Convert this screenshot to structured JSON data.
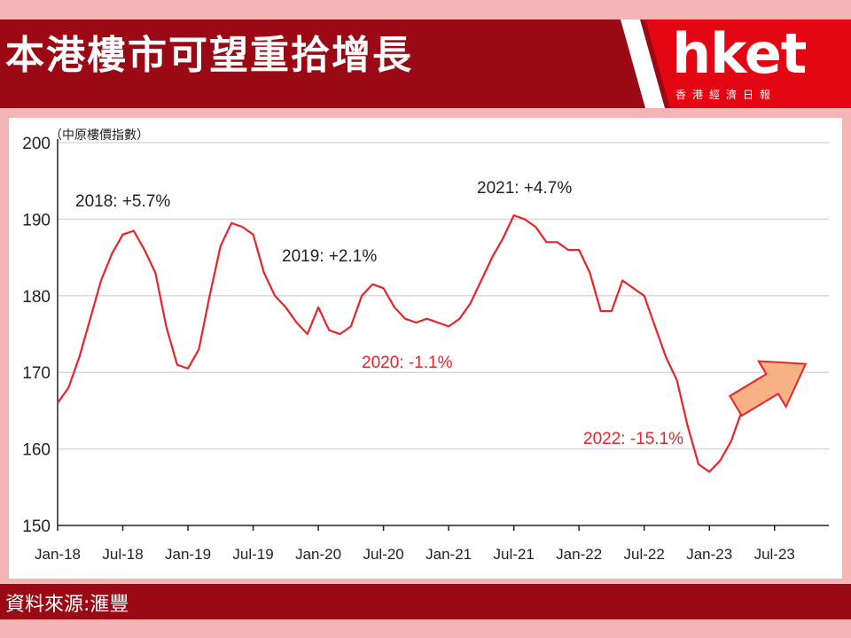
{
  "header": {
    "title": "本港樓市可望重拾增長"
  },
  "logo": {
    "brand": "hket",
    "subtitle": "香港經濟日報"
  },
  "footer": {
    "source": "資料來源:滙豐"
  },
  "colors": {
    "header_bg": "#9b0a14",
    "page_bg": "#f5b5b5",
    "line": "#e8242b",
    "arrow_fill": "#f7b184",
    "arrow_stroke": "#e8242b"
  },
  "chart_data": {
    "type": "line",
    "ylabel": "（中原樓價指數）",
    "ylim": [
      150,
      200
    ],
    "yticks": [
      150,
      160,
      170,
      180,
      190,
      200
    ],
    "xlim": [
      "2018-01",
      "2023-12"
    ],
    "xticks": [
      "Jan-18",
      "Jul-18",
      "Jan-19",
      "Jul-19",
      "Jan-20",
      "Jul-20",
      "Jan-21",
      "Jul-21",
      "Jan-22",
      "Jul-22",
      "Jan-23",
      "Jul-23"
    ],
    "grid": "horizontal",
    "series": [
      {
        "x": [
          "2018-01",
          "2018-02",
          "2018-03",
          "2018-04",
          "2018-05",
          "2018-06",
          "2018-07",
          "2018-08",
          "2018-09",
          "2018-10",
          "2018-11",
          "2018-12",
          "2019-01",
          "2019-02",
          "2019-03",
          "2019-04",
          "2019-05",
          "2019-06",
          "2019-07",
          "2019-08",
          "2019-09",
          "2019-10",
          "2019-11",
          "2019-12",
          "2020-01",
          "2020-02",
          "2020-03",
          "2020-04",
          "2020-05",
          "2020-06",
          "2020-07",
          "2020-08",
          "2020-09",
          "2020-10",
          "2020-11",
          "2020-12",
          "2021-01",
          "2021-02",
          "2021-03",
          "2021-04",
          "2021-05",
          "2021-06",
          "2021-07",
          "2021-08",
          "2021-09",
          "2021-10",
          "2021-11",
          "2021-12",
          "2022-01",
          "2022-02",
          "2022-03",
          "2022-04",
          "2022-05",
          "2022-06",
          "2022-07",
          "2022-08",
          "2022-09",
          "2022-10",
          "2022-11",
          "2022-12",
          "2023-01",
          "2023-02",
          "2023-03",
          "2023-04"
        ],
        "y": [
          166.0,
          168.0,
          172.0,
          177.0,
          182.0,
          185.5,
          188.0,
          188.5,
          186.0,
          183.0,
          176.0,
          171.0,
          170.5,
          173.0,
          180.0,
          186.5,
          189.5,
          189.0,
          188.0,
          183.0,
          180.0,
          178.5,
          176.5,
          175.0,
          178.5,
          175.5,
          175.0,
          176.0,
          180.0,
          181.5,
          181.0,
          178.5,
          177.0,
          176.5,
          177.0,
          176.5,
          176.0,
          177.0,
          179.0,
          182.0,
          185.0,
          187.5,
          190.5,
          190.0,
          189.0,
          187.0,
          187.0,
          186.0,
          186.0,
          183.0,
          178.0,
          178.0,
          182.0,
          181.0,
          180.0,
          176.0,
          172.0,
          169.0,
          163.0,
          158.0,
          157.0,
          158.5,
          161.0,
          165.0
        ]
      }
    ],
    "annotations": [
      {
        "text": "2018: +5.7%",
        "color": "#222222"
      },
      {
        "text": "2019: +2.1%",
        "color": "#222222"
      },
      {
        "text": "2020: -1.1%",
        "color": "#e8242b"
      },
      {
        "text": "2021: +4.7%",
        "color": "#222222"
      },
      {
        "text": "2022: -15.1%",
        "color": "#e8242b"
      }
    ]
  }
}
